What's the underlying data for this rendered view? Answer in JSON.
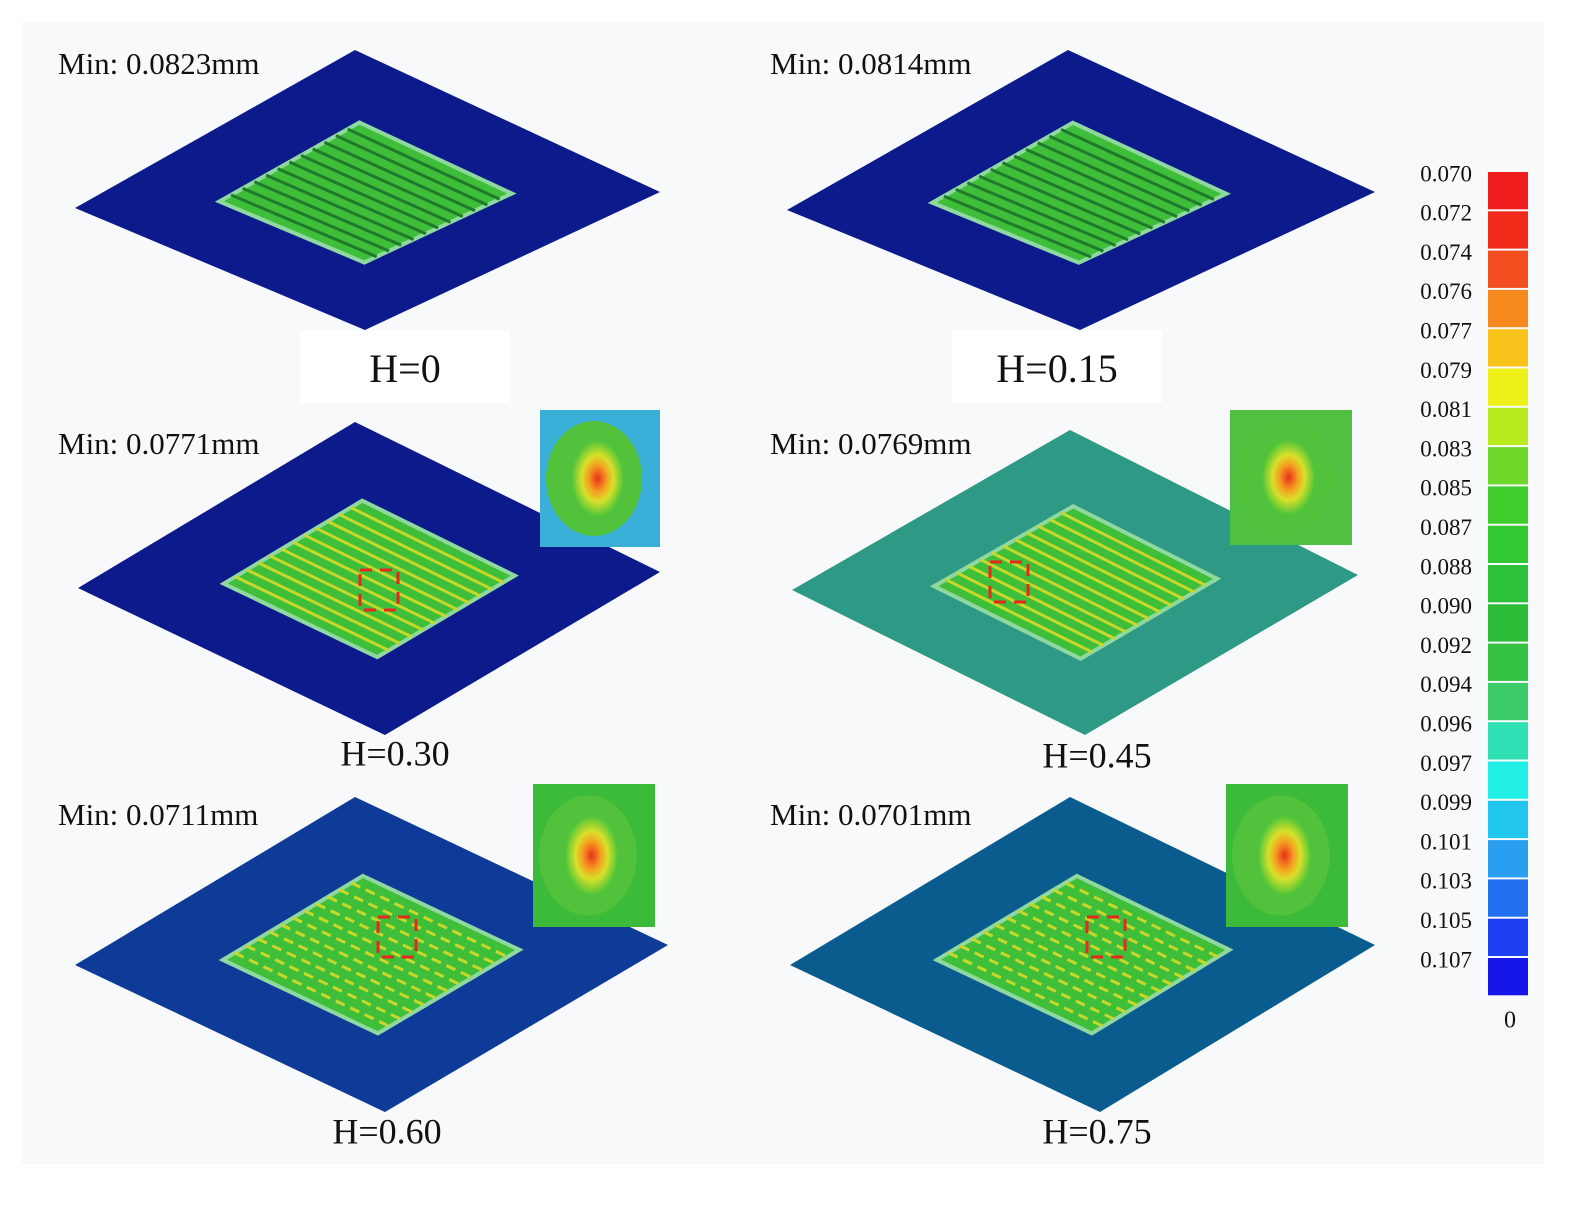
{
  "panels": [
    {
      "min_label": "Min: 0.0823mm",
      "caption": "H=0"
    },
    {
      "min_label": "Min: 0.0814mm",
      "caption": "H=0.15"
    },
    {
      "min_label": "Min: 0.0771mm",
      "caption": "H=0.30"
    },
    {
      "min_label": "Min: 0.0769mm",
      "caption": "H=0.45"
    },
    {
      "min_label": "Min: 0.0711mm",
      "caption": "H=0.60"
    },
    {
      "min_label": "Min: 0.0701mm",
      "caption": "H=0.75"
    }
  ],
  "colorbar": {
    "labels": [
      "0.070",
      "0.072",
      "0.074",
      "0.076",
      "0.077",
      "0.079",
      "0.081",
      "0.083",
      "0.085",
      "0.087",
      "0.088",
      "0.090",
      "0.092",
      "0.094",
      "0.096",
      "0.097",
      "0.099",
      "0.101",
      "0.103",
      "0.105",
      "0.107"
    ],
    "colors": [
      "#ee1c1c",
      "#f22a1a",
      "#f24d1e",
      "#f5891e",
      "#f9c21a",
      "#eef21a",
      "#b8ea1e",
      "#6fd62a",
      "#3fcd2c",
      "#32c832",
      "#2ec23a",
      "#2dbd38",
      "#34c040",
      "#3ccc6a",
      "#2ee0b4",
      "#22f0e6",
      "#20c6ee",
      "#2a9ef0",
      "#2070f0",
      "#1a3ef0",
      "#1616e8"
    ],
    "bottom_label": "0"
  }
}
